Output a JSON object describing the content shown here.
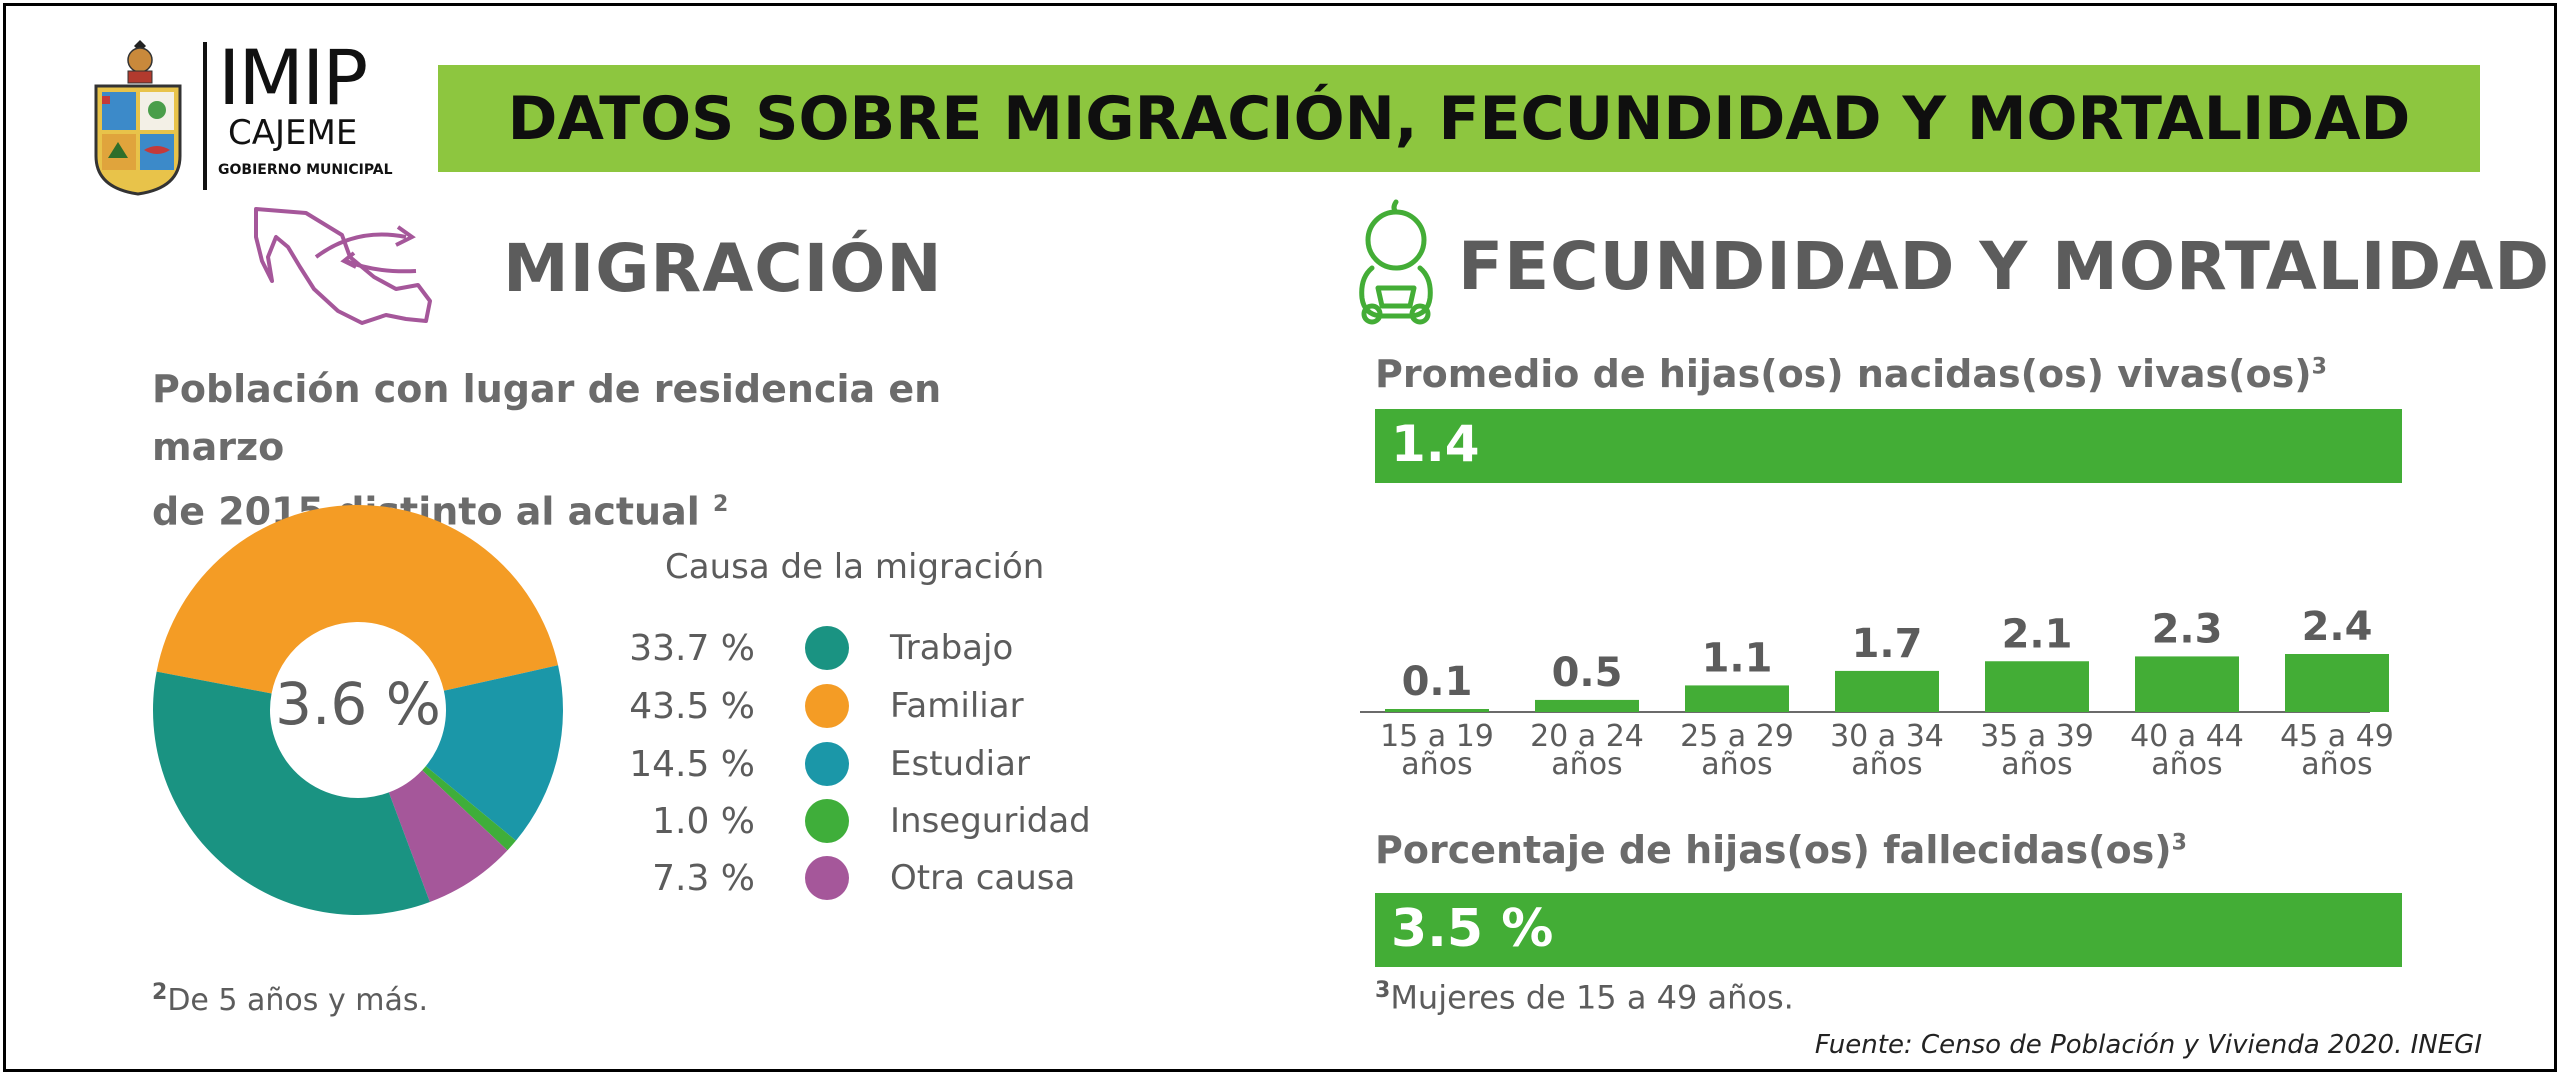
{
  "header": {
    "logo_line1": "IMIP",
    "logo_line2": "CAJEME",
    "logo_line3": "GOBIERNO MUNICIPAL",
    "banner_title": "DATOS SOBRE MIGRACIÓN, FECUNDIDAD Y MORTALIDAD"
  },
  "colors": {
    "banner": "#8dc63f",
    "bars": "#43ad36",
    "trabajo": "#1a9382",
    "familiar": "#f49c25",
    "estudiar": "#1b97a8",
    "inseguridad": "#3fae3a",
    "otra": "#a5579a"
  },
  "migracion": {
    "title": "MIGRACIÓN",
    "subheading_line1": "Población con lugar de residencia en marzo",
    "subheading_line2": "de 2015 distinto al actual",
    "subheading_sup": "2",
    "center_value": "3.6 %",
    "legend_title": "Causa de la migración",
    "legend": [
      {
        "pct": "33.7 %",
        "label": "Trabajo",
        "color": "#1a9382"
      },
      {
        "pct": "43.5 %",
        "label": "Familiar",
        "color": "#f49c25"
      },
      {
        "pct": "14.5 %",
        "label": "Estudiar",
        "color": "#1b97a8"
      },
      {
        "pct": "1.0 %",
        "label": "Inseguridad",
        "color": "#3fae3a"
      },
      {
        "pct": "7.3 %",
        "label": "Otra causa",
        "color": "#a5579a"
      }
    ],
    "footnote_sup": "2",
    "footnote": "De 5 años y más."
  },
  "fecundidad": {
    "title": "FECUNDIDAD Y MORTALIDAD",
    "avg_label": "Promedio de hijas(os) nacidas(os) vivas(os)",
    "avg_sup": "3",
    "avg_value": "1.4",
    "pct_label": "Porcentaje de hijas(os) fallecidas(os)",
    "pct_sup": "3",
    "pct_value": "3.5 %",
    "footnote_sup": "3",
    "footnote": "Mujeres de 15 a 49 años."
  },
  "source": "Fuente: Censo de Población y Vivienda 2020. INEGI",
  "chart_data": [
    {
      "type": "pie",
      "title": "Causa de la migración",
      "donut": true,
      "center_label": "3.6 %",
      "categories": [
        "Trabajo",
        "Familiar",
        "Estudiar",
        "Inseguridad",
        "Otra causa"
      ],
      "values": [
        33.7,
        43.5,
        14.5,
        1.0,
        7.3
      ],
      "colors": [
        "#1a9382",
        "#f49c25",
        "#1b97a8",
        "#3fae3a",
        "#a5579a"
      ]
    },
    {
      "type": "bar",
      "categories_line1": [
        "15 a 19",
        "20 a 24",
        "25 a 29",
        "30 a 34",
        "35 a 39",
        "40 a 44",
        "45 a 49"
      ],
      "categories_line2": [
        "años",
        "años",
        "años",
        "años",
        "años",
        "años",
        "años"
      ],
      "values": [
        0.1,
        0.5,
        1.1,
        1.7,
        2.1,
        2.3,
        2.4
      ],
      "labels": [
        "0.1",
        "0.5",
        "1.1",
        "1.7",
        "2.1",
        "2.3",
        "2.4"
      ],
      "color": "#43ad36",
      "ylim": [
        0,
        2.4
      ]
    }
  ]
}
